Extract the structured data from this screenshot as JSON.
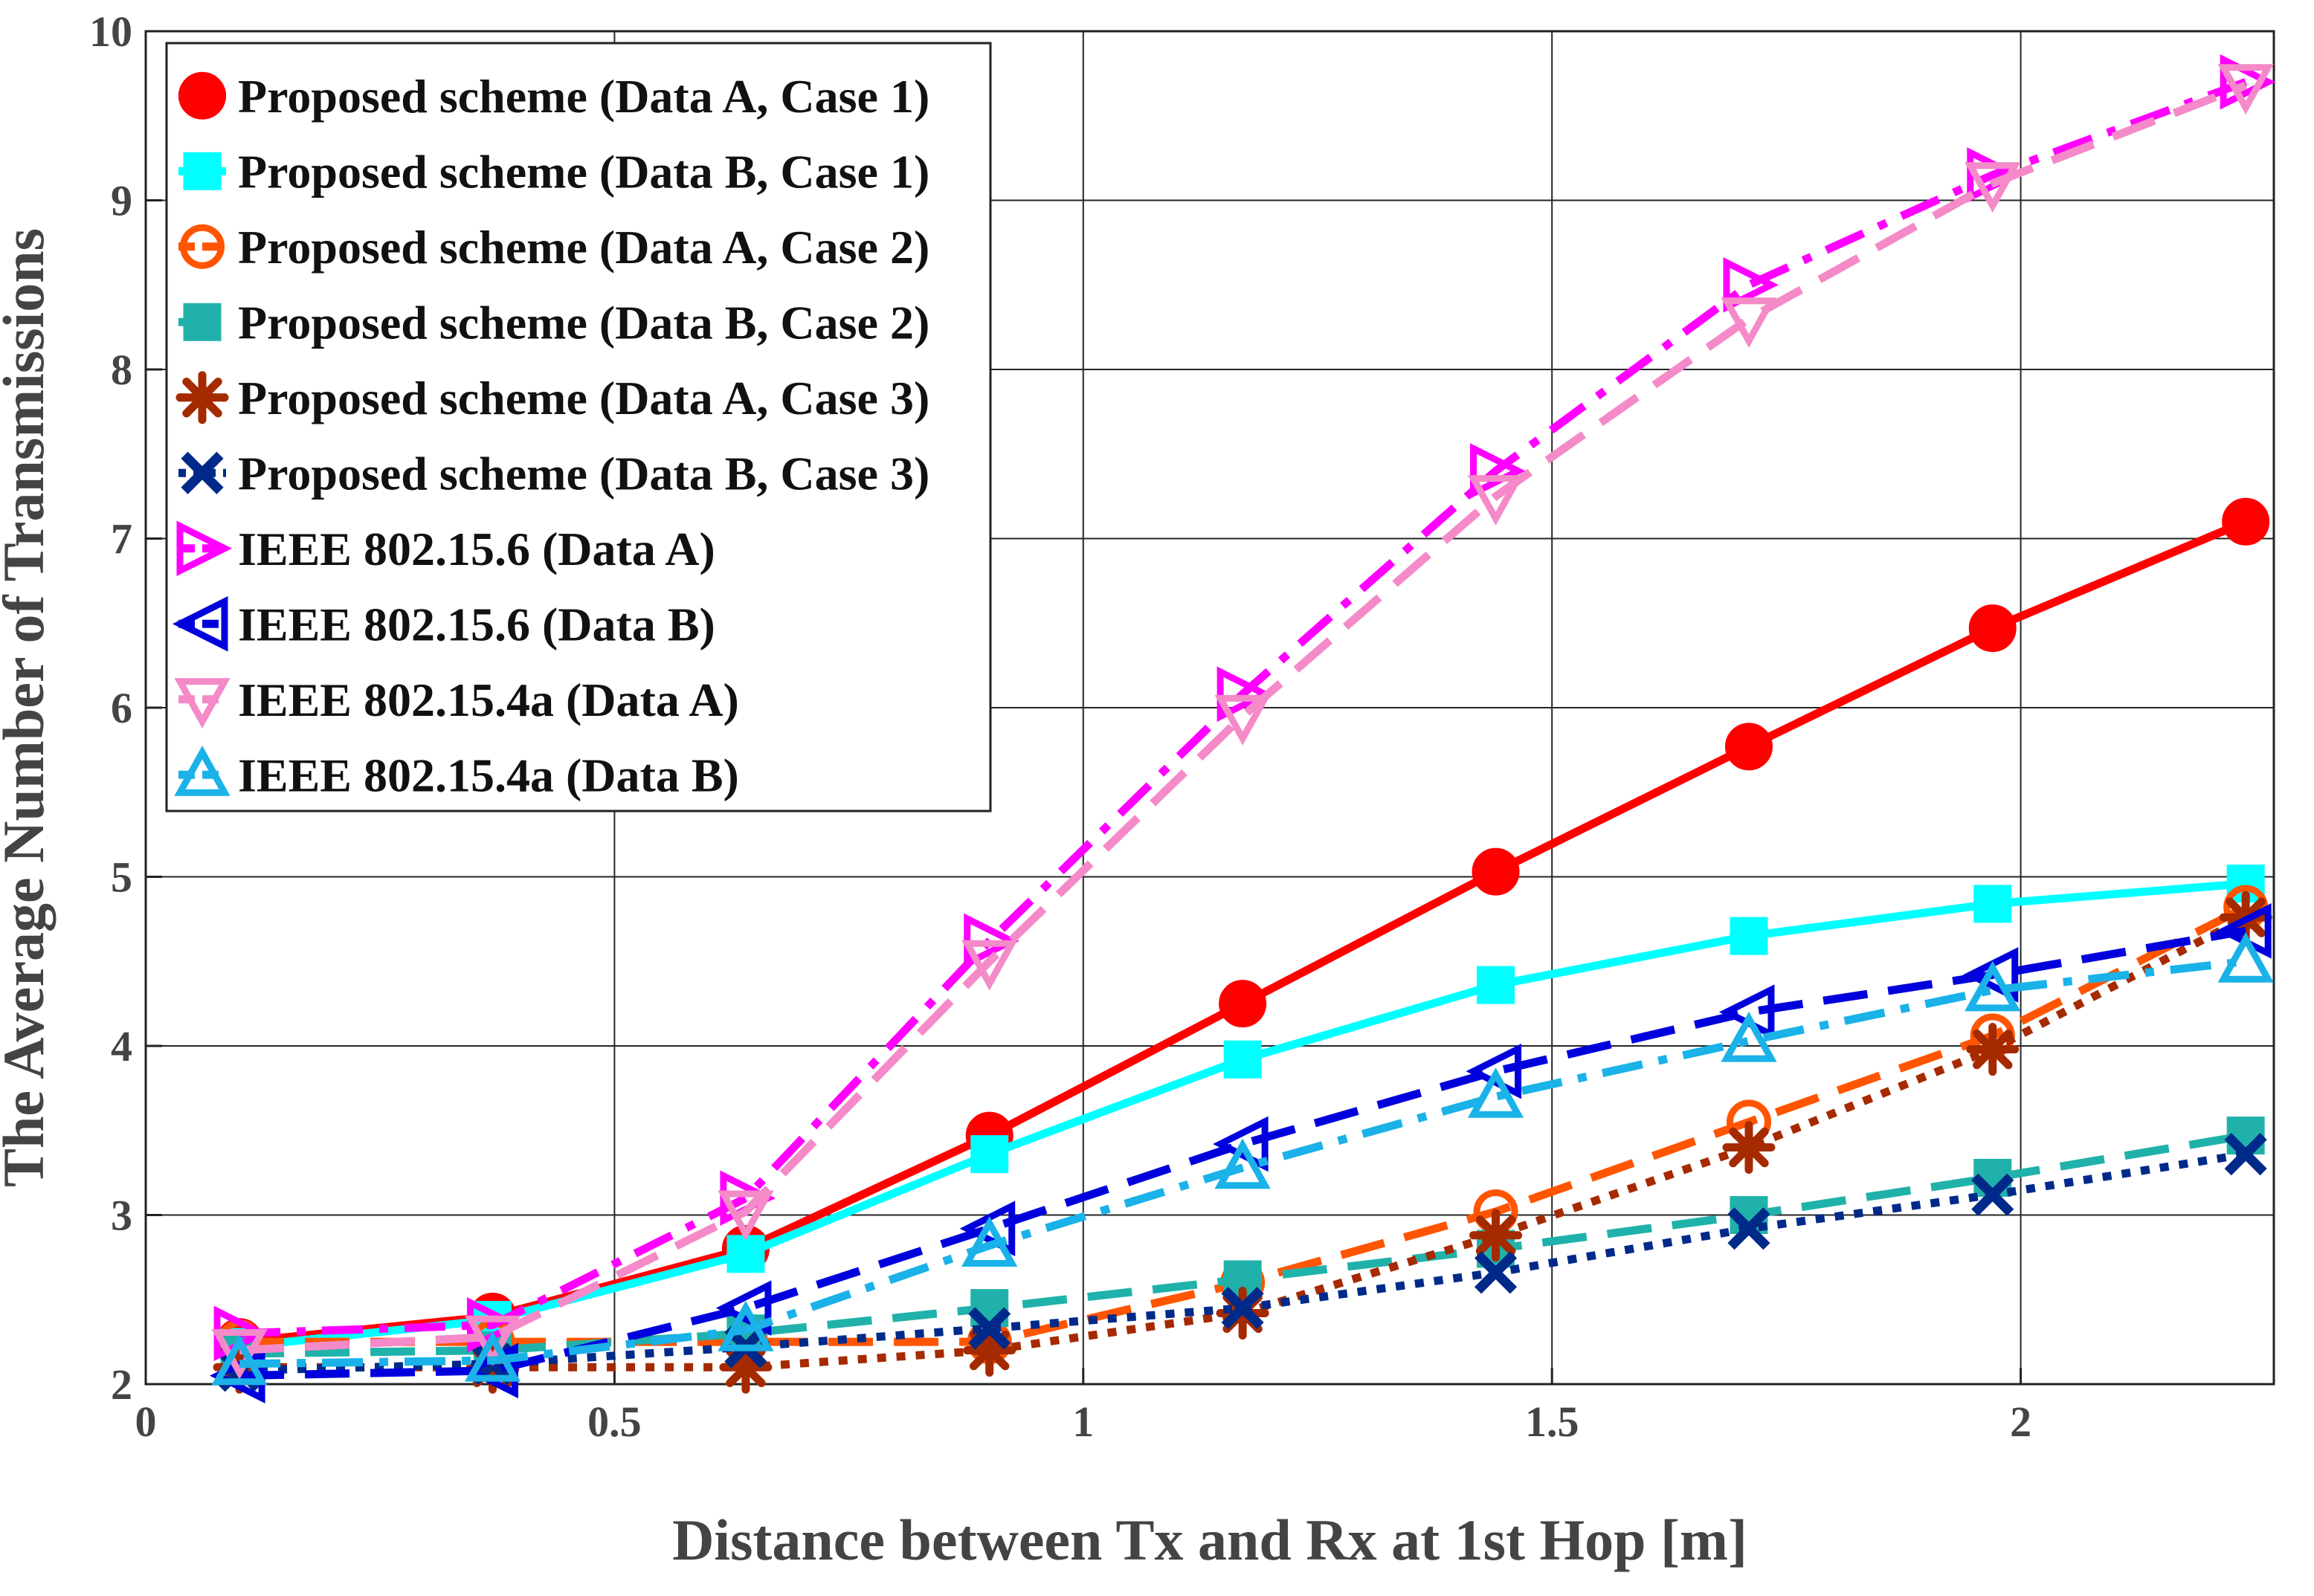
{
  "chart_data": {
    "type": "line",
    "title": "",
    "xlabel": "Distance between Tx and Rx at 1st Hop [m]",
    "ylabel": "The Average Number of Transmissions",
    "xlim": [
      0,
      2.27
    ],
    "ylim": [
      2,
      10
    ],
    "xticks": [
      0,
      0.5,
      1,
      1.5,
      2
    ],
    "xtick_labels": [
      "0",
      "0.5",
      "1",
      "1.5",
      "2"
    ],
    "yticks": [
      2,
      3,
      4,
      5,
      6,
      7,
      8,
      9,
      10
    ],
    "ytick_labels": [
      "2",
      "3",
      "4",
      "5",
      "6",
      "7",
      "8",
      "9",
      "10"
    ],
    "grid": true,
    "legend_position": "top-left",
    "x": [
      0.1,
      0.37,
      0.64,
      0.9,
      1.17,
      1.44,
      1.71,
      1.97,
      2.24
    ],
    "series": [
      {
        "name": "Proposed scheme (Data A, Case 1)",
        "color": "#ff0000",
        "marker": "circle-filled",
        "dash": "solid",
        "values": [
          2.25,
          2.4,
          2.8,
          3.47,
          4.25,
          5.03,
          5.77,
          6.47,
          7.1
        ]
      },
      {
        "name": "Proposed scheme (Data B, Case 1)",
        "color": "#00ffff",
        "marker": "square-filled",
        "dash": "solid",
        "values": [
          2.22,
          2.38,
          2.77,
          3.36,
          3.92,
          4.36,
          4.65,
          4.84,
          4.96
        ]
      },
      {
        "name": "Proposed scheme (Data A, Case 2)",
        "color": "#ff5500",
        "marker": "circle-open",
        "dash": "dashed",
        "values": [
          2.25,
          2.25,
          2.25,
          2.25,
          2.6,
          3.02,
          3.55,
          4.06,
          4.82
        ]
      },
      {
        "name": "Proposed scheme (Data B, Case 2)",
        "color": "#20b2aa",
        "marker": "square-filled",
        "dash": "dashed",
        "values": [
          2.18,
          2.2,
          2.3,
          2.45,
          2.62,
          2.8,
          3.0,
          3.22,
          3.47
        ]
      },
      {
        "name": "Proposed scheme (Data A, Case 3)",
        "color": "#a52a00",
        "marker": "asterisk",
        "dash": "dotted",
        "values": [
          2.1,
          2.1,
          2.1,
          2.2,
          2.42,
          2.88,
          3.4,
          3.98,
          4.76
        ]
      },
      {
        "name": "Proposed scheme (Data B, Case 3)",
        "color": "#002a8a",
        "marker": "x",
        "dash": "dotted",
        "values": [
          2.08,
          2.12,
          2.22,
          2.33,
          2.45,
          2.66,
          2.92,
          3.12,
          3.36
        ]
      },
      {
        "name": "IEEE 802.15.6 (Data A)",
        "color": "#ff00ff",
        "marker": "triangle-right",
        "dash": "dashdot",
        "values": [
          2.3,
          2.35,
          3.1,
          4.62,
          6.08,
          7.4,
          8.5,
          9.15,
          9.7
        ]
      },
      {
        "name": "IEEE 802.15.6 (Data B)",
        "color": "#0000dd",
        "marker": "triangle-left",
        "dash": "dashed",
        "values": [
          2.05,
          2.08,
          2.45,
          2.92,
          3.42,
          3.85,
          4.2,
          4.42,
          4.68
        ]
      },
      {
        "name": "IEEE 802.15.4a (Data A)",
        "color": "#f48ac8",
        "marker": "triangle-down",
        "dash": "dashed",
        "values": [
          2.2,
          2.28,
          3.02,
          4.5,
          5.95,
          7.25,
          8.3,
          9.1,
          9.68
        ]
      },
      {
        "name": "IEEE 802.15.4a (Data B)",
        "color": "#1ab2e8",
        "marker": "triangle-up",
        "dash": "dashdot",
        "values": [
          2.12,
          2.14,
          2.32,
          2.82,
          3.28,
          3.7,
          4.03,
          4.33,
          4.5
        ]
      }
    ]
  }
}
